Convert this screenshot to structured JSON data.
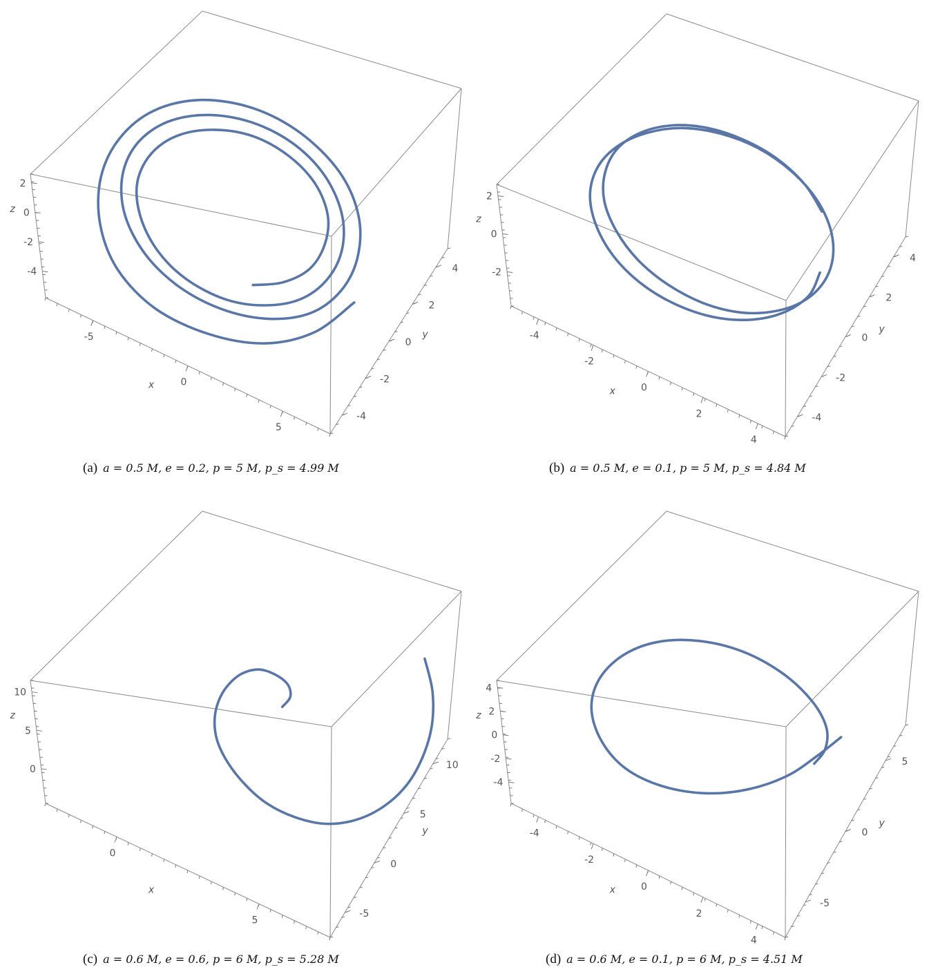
{
  "chart_data": [
    {
      "type": "3d-line",
      "caption_tag": "(a)",
      "caption_math": "a = 0.5 M,  e = 0.2,  p = 5 M,  p_s = 4.99 M",
      "xlabel": "x",
      "ylabel": "y",
      "zlabel": "z",
      "x_ticks": [
        "-5",
        "0",
        "5"
      ],
      "y_ticks": [
        "4",
        "2",
        "0",
        "-2",
        "-4"
      ],
      "z_ticks": [
        "2",
        "0",
        "-2",
        "-4"
      ],
      "params": {
        "a": 0.5,
        "e": 0.2,
        "p": 5,
        "p_s": 4.99
      },
      "xlim": [
        -6,
        6
      ],
      "ylim": [
        -6,
        5
      ],
      "zlim": [
        -5,
        3
      ],
      "trajectory_xy": [
        [
          5.02,
          -1.3
        ],
        [
          4.0,
          -3.31
        ],
        [
          2.42,
          -4.76
        ],
        [
          0.39,
          -5.5
        ],
        [
          -1.74,
          -5.53
        ],
        [
          -3.5,
          -4.69
        ],
        [
          -4.64,
          -3.18
        ],
        [
          -5.16,
          -1.26
        ],
        [
          -4.97,
          0.73
        ],
        [
          -4.11,
          2.55
        ],
        [
          -2.63,
          3.92
        ],
        [
          -0.75,
          4.63
        ],
        [
          1.19,
          4.57
        ],
        [
          2.98,
          3.76
        ],
        [
          4.15,
          2.36
        ],
        [
          4.61,
          0.62
        ],
        [
          4.42,
          -1.11
        ],
        [
          3.62,
          -2.63
        ],
        [
          2.22,
          -3.7
        ],
        [
          0.55,
          -4.22
        ],
        [
          -1.19,
          -4.16
        ],
        [
          -2.74,
          -3.5
        ],
        [
          -3.91,
          -2.28
        ],
        [
          -4.44,
          -0.73
        ],
        [
          -4.3,
          0.89
        ],
        [
          -3.52,
          2.35
        ],
        [
          -2.24,
          3.43
        ],
        [
          -0.65,
          4.02
        ],
        [
          1.02,
          4.0
        ],
        [
          2.47,
          3.35
        ],
        [
          3.53,
          2.14
        ],
        [
          3.98,
          0.67
        ],
        [
          3.83,
          -0.86
        ],
        [
          3.13,
          -2.24
        ],
        [
          1.93,
          -3.23
        ],
        [
          0.52,
          -3.75
        ],
        [
          -1.05,
          -3.7
        ],
        [
          -2.37,
          -3.1
        ],
        [
          -3.36,
          -2.03
        ],
        [
          -3.85,
          -0.7
        ],
        [
          -3.7,
          0.74
        ],
        [
          -2.98,
          2.03
        ],
        [
          -1.78,
          2.99
        ],
        [
          -0.38,
          3.49
        ],
        [
          1.07,
          3.39
        ],
        [
          2.3,
          2.78
        ],
        [
          3.1,
          1.73
        ],
        [
          3.33,
          0.49
        ],
        [
          3.1,
          -0.8
        ],
        [
          2.33,
          -1.9
        ],
        [
          1.33,
          -2.61
        ]
      ],
      "color": "#5a76a6"
    },
    {
      "type": "3d-line",
      "caption_tag": "(b)",
      "caption_math": "a = 0.5 M,  e = 0.1,  p = 5 M,  p_s = 4.84 M",
      "xlabel": "x",
      "ylabel": "y",
      "zlabel": "z",
      "x_ticks": [
        "-4",
        "-2",
        "0",
        "2",
        "4"
      ],
      "y_ticks": [
        "4",
        "2",
        "0",
        "-2",
        "-4"
      ],
      "z_ticks": [
        "2",
        "0",
        "-2"
      ],
      "params": {
        "a": 0.5,
        "e": 0.1,
        "p": 5,
        "p_s": 4.84
      },
      "xlim": [
        -5,
        5
      ],
      "ylim": [
        -5,
        5
      ],
      "zlim": [
        -4,
        3
      ],
      "trajectory_xy": [
        [
          4.08,
          -0.36
        ],
        [
          3.97,
          -1.53
        ],
        [
          3.32,
          -2.71
        ],
        [
          2.31,
          -3.66
        ],
        [
          1.01,
          -4.31
        ],
        [
          -0.45,
          -4.55
        ],
        [
          -1.87,
          -4.37
        ],
        [
          -3.1,
          -3.78
        ],
        [
          -4.02,
          -2.85
        ],
        [
          -4.55,
          -1.71
        ],
        [
          -4.58,
          -0.43
        ],
        [
          -4.13,
          0.82
        ],
        [
          -3.29,
          1.93
        ],
        [
          -2.16,
          2.82
        ],
        [
          -0.81,
          3.35
        ],
        [
          0.6,
          3.5
        ],
        [
          1.97,
          3.22
        ],
        [
          3.12,
          2.58
        ],
        [
          3.93,
          1.65
        ],
        [
          4.34,
          0.54
        ],
        [
          4.32,
          -0.66
        ],
        [
          3.86,
          -1.84
        ],
        [
          3.02,
          -2.83
        ],
        [
          1.89,
          -3.57
        ],
        [
          0.54,
          -3.94
        ],
        [
          -0.86,
          -3.9
        ],
        [
          -2.17,
          -3.49
        ],
        [
          -3.24,
          -2.73
        ],
        [
          -3.99,
          -1.73
        ],
        [
          -4.28,
          -0.57
        ],
        [
          -4.14,
          0.65
        ],
        [
          -3.54,
          1.78
        ],
        [
          -2.56,
          2.71
        ],
        [
          -1.35,
          3.31
        ],
        [
          0.0,
          3.55
        ],
        [
          1.36,
          3.44
        ],
        [
          2.58,
          2.94
        ],
        [
          3.45,
          2.18
        ]
      ],
      "color": "#5a76a6"
    },
    {
      "type": "3d-line",
      "caption_tag": "(c)",
      "caption_math": "a = 0.6 M,  e = 0.6,  p = 6 M,  p_s = 5.28 M",
      "xlabel": "x",
      "ylabel": "y",
      "zlabel": "z",
      "x_ticks": [
        "0",
        "5"
      ],
      "y_ticks": [
        "10",
        "5",
        "0",
        "-5"
      ],
      "z_ticks": [
        "10",
        "5",
        "0"
      ],
      "params": {
        "a": 0.6,
        "e": 0.6,
        "p": 6,
        "p_s": 5.28
      },
      "xlim": [
        -4,
        14
      ],
      "ylim": [
        -8,
        12
      ],
      "zlim": [
        -4,
        10
      ],
      "trajectory_xy": [
        [
          1.3,
          2.0
        ],
        [
          1.6,
          3.0
        ],
        [
          1.2,
          3.8
        ],
        [
          0.2,
          4.1
        ],
        [
          -1.0,
          3.9
        ],
        [
          -2.0,
          3.0
        ],
        [
          -2.6,
          1.8
        ],
        [
          -2.9,
          0.4
        ],
        [
          -2.8,
          -1.2
        ],
        [
          -2.2,
          -2.7
        ],
        [
          -1.0,
          -4.0
        ],
        [
          0.6,
          -5.0
        ],
        [
          2.4,
          -5.6
        ],
        [
          4.5,
          -5.6
        ],
        [
          6.6,
          -5.0
        ],
        [
          8.5,
          -3.6
        ],
        [
          10.0,
          -1.6
        ],
        [
          11.0,
          0.8
        ],
        [
          11.4,
          3.4
        ],
        [
          11.3,
          6.0
        ],
        [
          10.6,
          8.5
        ],
        [
          9.4,
          10.6
        ]
      ],
      "color": "#5a76a6"
    },
    {
      "type": "3d-line",
      "caption_tag": "(d)",
      "caption_math": "a = 0.6 M,  e = 0.1,  p = 6 M,  p_s = 4.51 M",
      "xlabel": "x",
      "ylabel": "y",
      "zlabel": "z",
      "x_ticks": [
        "-4",
        "-2",
        "0",
        "2",
        "4"
      ],
      "y_ticks": [
        "5",
        "0",
        "-5"
      ],
      "z_ticks": [
        "4",
        "2",
        "0",
        "-2",
        "-4"
      ],
      "params": {
        "a": 0.6,
        "e": 0.1,
        "p": 6,
        "p_s": 4.51
      },
      "xlim": [
        -5,
        5
      ],
      "ylim": [
        -7,
        6
      ],
      "zlim": [
        -5,
        4
      ],
      "trajectory_xy": [
        [
          4.2,
          2.0
        ],
        [
          3.6,
          0.6
        ],
        [
          2.8,
          -1.0
        ],
        [
          1.6,
          -2.5
        ],
        [
          0.2,
          -3.6
        ],
        [
          -1.3,
          -4.2
        ],
        [
          -2.7,
          -4.2
        ],
        [
          -3.8,
          -3.5
        ],
        [
          -4.5,
          -2.3
        ],
        [
          -4.6,
          -0.8
        ],
        [
          -4.1,
          0.8
        ],
        [
          -3.1,
          2.2
        ],
        [
          -1.7,
          3.2
        ],
        [
          -0.1,
          3.7
        ],
        [
          1.5,
          3.6
        ],
        [
          2.8,
          3.0
        ],
        [
          3.6,
          2.1
        ],
        [
          3.8,
          1.1
        ],
        [
          3.6,
          0.2
        ]
      ],
      "color": "#5a76a6"
    }
  ]
}
